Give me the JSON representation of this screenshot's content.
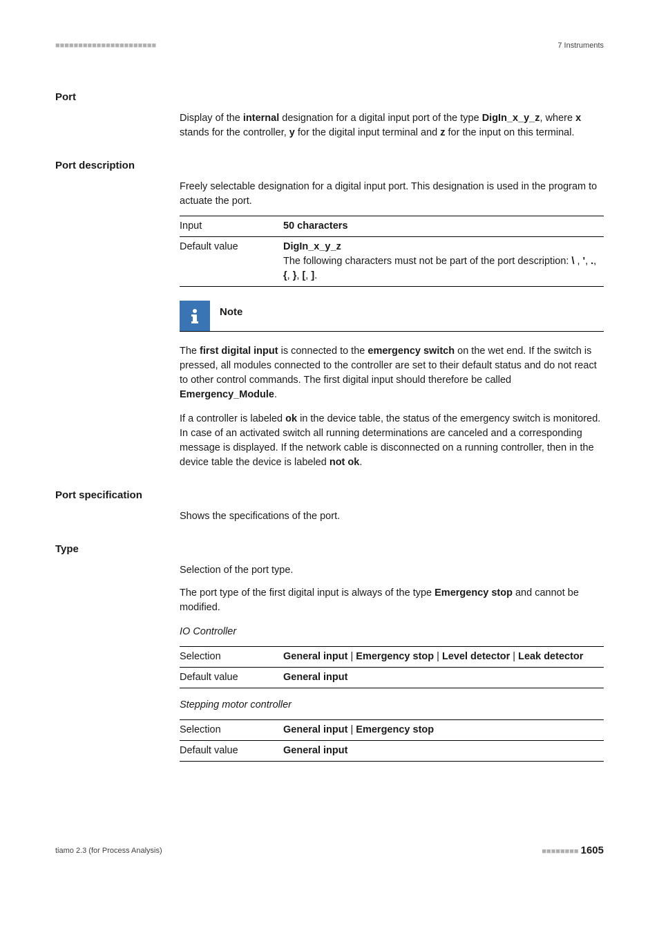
{
  "header": {
    "dashes": "■■■■■■■■■■■■■■■■■■■■■■",
    "right": "7 Instruments"
  },
  "sections": {
    "port": {
      "title": "Port",
      "body_parts": [
        {
          "t": "Display of the "
        },
        {
          "t": "internal",
          "b": true
        },
        {
          "t": " designation for a digital input port of the type "
        },
        {
          "t": "DigIn_x_y_z",
          "b": true
        },
        {
          "t": ", where "
        },
        {
          "t": "x",
          "b": true
        },
        {
          "t": " stands for the controller, "
        },
        {
          "t": "y",
          "b": true
        },
        {
          "t": " for the digital input terminal and "
        },
        {
          "t": "z",
          "b": true
        },
        {
          "t": " for the input on this terminal."
        }
      ]
    },
    "port_description": {
      "title": "Port description",
      "body": "Freely selectable designation for a digital input port. This designation is used in the program to actuate the port.",
      "rows": [
        {
          "label": "Input",
          "value_parts": [
            {
              "t": "50 characters",
              "b": true
            }
          ]
        },
        {
          "label": "Default value",
          "value_parts": [
            {
              "t": "DigIn_x_y_z",
              "b": true
            },
            {
              "br": true
            },
            {
              "t": "The following characters must not be part of the port description: "
            },
            {
              "t": "\\",
              "b": true
            },
            {
              "t": " , "
            },
            {
              "t": "'",
              "b": true
            },
            {
              "t": ", "
            },
            {
              "t": ".",
              "b": true
            },
            {
              "t": ", "
            },
            {
              "t": "{",
              "b": true
            },
            {
              "t": ", "
            },
            {
              "t": "}",
              "b": true
            },
            {
              "t": ", "
            },
            {
              "t": "[",
              "b": true
            },
            {
              "t": ", "
            },
            {
              "t": "]",
              "b": true
            },
            {
              "t": "."
            }
          ]
        }
      ],
      "note": {
        "label": "Note",
        "paragraphs": [
          [
            {
              "t": "The "
            },
            {
              "t": "first digital input",
              "b": true
            },
            {
              "t": " is connected to the "
            },
            {
              "t": "emergency switch",
              "b": true
            },
            {
              "t": " on the wet end. If the switch is pressed, all modules connected to the controller are set to their default status and do not react to other control commands. The first digital input should therefore be called "
            },
            {
              "t": "Emergency_Module",
              "b": true
            },
            {
              "t": "."
            }
          ],
          [
            {
              "t": "If a controller is labeled "
            },
            {
              "t": "ok",
              "b": true
            },
            {
              "t": " in the device table, the status of the emergency switch is monitored. In case of an activated switch all running determinations are canceled and a corresponding message is displayed. If the network cable is disconnected on a running controller, then in the device table the device is labeled "
            },
            {
              "t": "not ok",
              "b": true
            },
            {
              "t": "."
            }
          ]
        ]
      }
    },
    "port_specification": {
      "title": "Port specification",
      "body": "Shows the specifications of the port."
    },
    "type": {
      "title": "Type",
      "body": "Selection of the port type.",
      "body2_parts": [
        {
          "t": "The port type of the first digital input is always of the type "
        },
        {
          "t": "Emergency stop",
          "b": true
        },
        {
          "t": " and cannot be modified."
        }
      ],
      "group1": {
        "caption": "IO Controller",
        "rows": [
          {
            "label": "Selection",
            "value_parts": [
              {
                "t": "General input",
                "b": true
              },
              {
                "t": " | "
              },
              {
                "t": "Emergency stop",
                "b": true
              },
              {
                "t": " | "
              },
              {
                "t": "Level detector",
                "b": true
              },
              {
                "t": " | "
              },
              {
                "t": "Leak detector",
                "b": true
              }
            ]
          },
          {
            "label": "Default value",
            "value_parts": [
              {
                "t": "General input",
                "b": true
              }
            ]
          }
        ]
      },
      "group2": {
        "caption": "Stepping motor controller",
        "rows": [
          {
            "label": "Selection",
            "value_parts": [
              {
                "t": "General input",
                "b": true
              },
              {
                "t": " | "
              },
              {
                "t": "Emergency stop",
                "b": true
              }
            ]
          },
          {
            "label": "Default value",
            "value_parts": [
              {
                "t": "General input",
                "b": true
              }
            ]
          }
        ]
      }
    }
  },
  "footer": {
    "left": "tiamo 2.3 (for Process Analysis)",
    "dashes": "■■■■■■■■",
    "page": "1605"
  },
  "colors": {
    "note_icon_bg": "#3975b4"
  }
}
